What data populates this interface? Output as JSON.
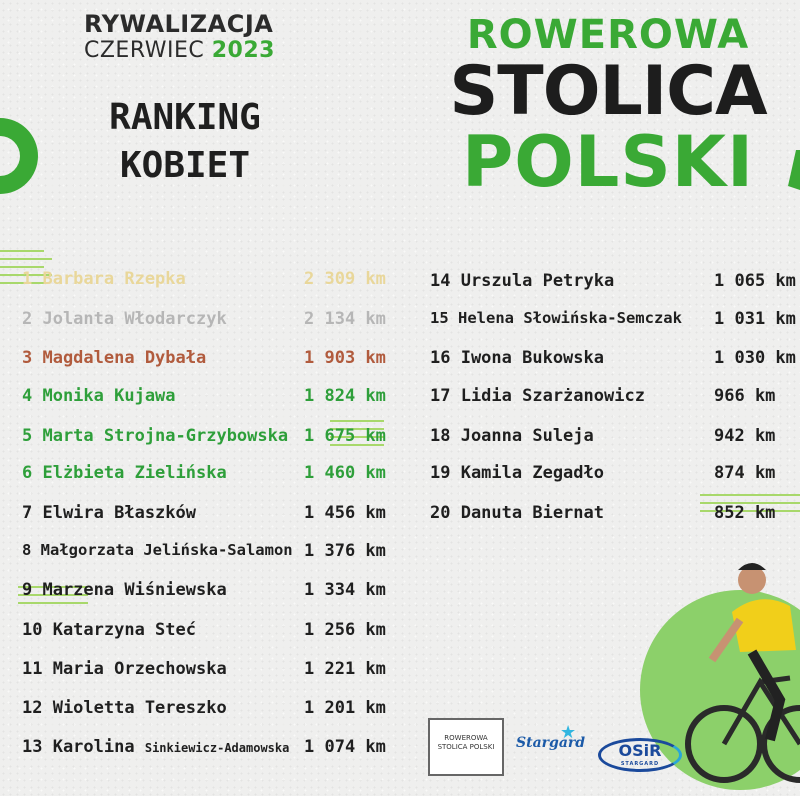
{
  "event": {
    "title": "RYWALIZACJA",
    "month": "CZERWIEC",
    "year": "2023"
  },
  "ranking_title": [
    "RANKING",
    "KOBIET"
  ],
  "brand": {
    "line1": "ROWEROWA",
    "line2": "STOLICA",
    "line3": "POLSKI"
  },
  "colors": {
    "green": "#3aa935",
    "gold": "#e9d79a",
    "silver": "#b6b6b6",
    "bronze": "#b15b3d",
    "dark": "#1f1f1f"
  },
  "rankings_left": [
    {
      "name": "1 Barbara Rzepka",
      "km": "2 309 km"
    },
    {
      "name": "2 Jolanta Włodarczyk",
      "km": "2 134 km"
    },
    {
      "name": "3 Magdalena Dybała",
      "km": "1 903 km"
    },
    {
      "name": "4 Monika Kujawa",
      "km": "1 824 km"
    },
    {
      "name": "5 Marta Strojna-Grzybowska",
      "km": "1 675 km"
    },
    {
      "name": "6 Elżbieta Zielińska",
      "km": "1 460 km"
    },
    {
      "name": "7 Elwira Błaszków",
      "km": "1 456 km"
    },
    {
      "name": "8 Małgorzata Jelińska-Salamon",
      "km": "1 376 km"
    },
    {
      "name": "9 Marzena Wiśniewska",
      "km": "1 334 km"
    },
    {
      "name": "10 Katarzyna Steć",
      "km": "1 256 km"
    },
    {
      "name": "11 Maria Orzechowska",
      "km": "1 221 km"
    },
    {
      "name": "12 Wioletta Tereszko",
      "km": "1 201 km"
    },
    {
      "name_main": "13 Karolina",
      "name_small": "Sinkiewicz-Adamowska",
      "km": "1 074 km"
    }
  ],
  "rankings_right": [
    {
      "name": "14 Urszula Petryka",
      "km": "1 065 km"
    },
    {
      "name": "15 Helena Słowińska-Semczak",
      "km": "1 031 km"
    },
    {
      "name": "16 Iwona Bukowska",
      "km": "1 030 km"
    },
    {
      "name": "17 Lidia Szarżanowicz",
      "km": "966 km"
    },
    {
      "name": "18 Joanna Suleja",
      "km": "942 km"
    },
    {
      "name": "19 Kamila Zegadło",
      "km": "874 km"
    },
    {
      "name": "20 Danuta Biernat",
      "km": "852 km"
    }
  ],
  "logos": {
    "rsp": "ROWEROWA STOLICA POLSKI",
    "stargard": "Stargard",
    "osir": "OSiR",
    "osir_sub": "STARGARD"
  }
}
